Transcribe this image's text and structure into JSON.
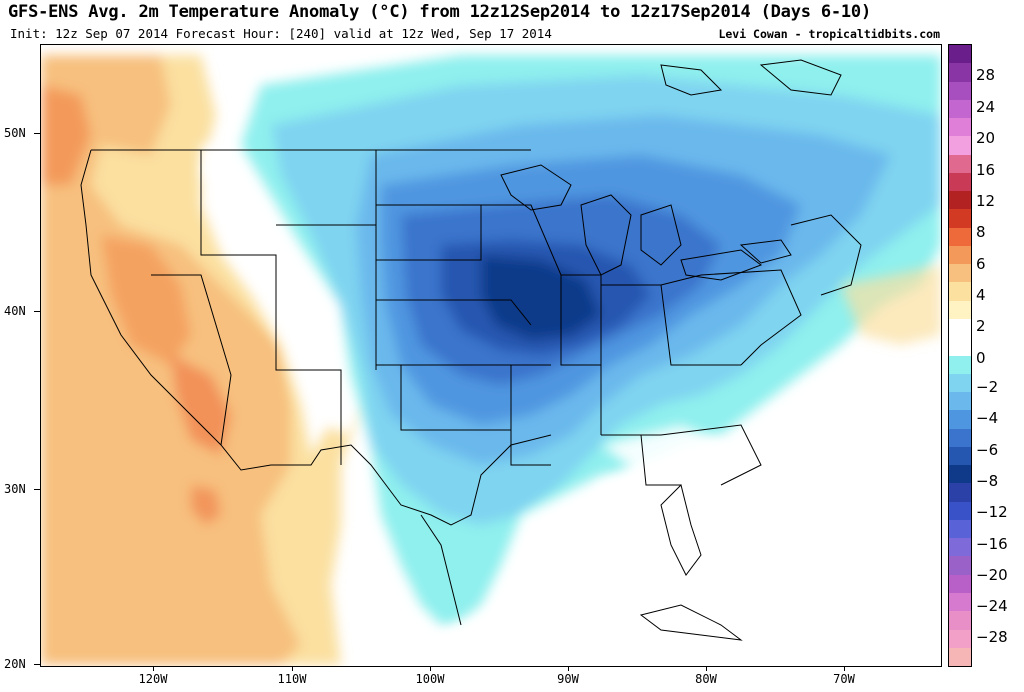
{
  "title": "GFS-ENS Avg. 2m Temperature Anomaly (°C) from 12z12Sep2014 to 12z17Sep2014 (Days 6-10)",
  "subtitle": "Init: 12z Sep 07 2014 Forecast Hour: [240] valid at 12z Wed, Sep 17 2014",
  "credit": "Levi Cowan - tropicaltidbits.com",
  "map": {
    "lat_labels": [
      "50N",
      "40N",
      "30N",
      "20N"
    ],
    "lon_labels": [
      "120W",
      "110W",
      "100W",
      "90W",
      "80W",
      "70W"
    ]
  },
  "colorbar": {
    "labels": [
      "28",
      "24",
      "20",
      "16",
      "12",
      "8",
      "6",
      "4",
      "2",
      "0",
      "−2",
      "−4",
      "−6",
      "−8",
      "−12",
      "−16",
      "−20",
      "−24",
      "−28"
    ],
    "colors": [
      "#6a1e8c",
      "#8a35a6",
      "#a84fbf",
      "#c466cf",
      "#e07fd8",
      "#f2a0e0",
      "#e0698f",
      "#c83a56",
      "#b22222",
      "#d23a24",
      "#ee6a3a",
      "#f39a5a",
      "#f7c07e",
      "#fbe0a0",
      "#fff3c4",
      "#ffffff",
      "#ffffff",
      "#8ff0ee",
      "#7fd4f0",
      "#6ab8ec",
      "#4f96e0",
      "#3b74cc",
      "#2557b0",
      "#0f3a8a",
      "#2b41a8",
      "#3a52c8",
      "#5a62d8",
      "#7e6ad8",
      "#9a62c8",
      "#b860c8",
      "#d67ad0",
      "#e88fc8",
      "#f2a0c8",
      "#f6b6b6"
    ]
  }
}
